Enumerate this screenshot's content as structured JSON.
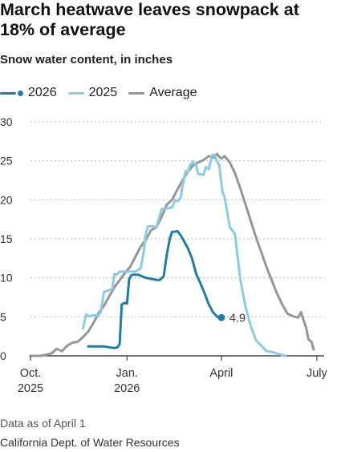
{
  "title": "March heatwave leaves snowpack at 18% of average",
  "subtitle": "Snow water content, in inches",
  "note": "Data as of April 1",
  "source": "California Dept. of Water Resources",
  "colors": {
    "s2026": "#1d7fa5",
    "s2025": "#8ccbe6",
    "average": "#969696",
    "grid": "#b9b9b9",
    "axis": "#222222"
  },
  "chart_data": {
    "type": "line",
    "title": "March heatwave leaves snowpack at 18% of average",
    "ylabel": "Snow water content, in inches",
    "ylim": [
      0,
      30
    ],
    "xlim": [
      0,
      280
    ],
    "yticks": [
      0,
      5,
      10,
      15,
      20,
      25,
      30
    ],
    "xticks": [
      {
        "x": 0,
        "label": "Oct.",
        "sublabel": "2025"
      },
      {
        "x": 92,
        "label": "Jan.",
        "sublabel": "2026"
      },
      {
        "x": 182,
        "label": "April",
        "sublabel": ""
      },
      {
        "x": 273,
        "label": "July",
        "sublabel": ""
      }
    ],
    "grid": true,
    "legend_position": "top-left",
    "end_label": "4.9",
    "series": [
      {
        "name": "Average",
        "x": [
          0,
          10,
          20,
          25,
          30,
          35,
          40,
          45,
          50,
          55,
          60,
          65,
          70,
          75,
          80,
          85,
          90,
          95,
          100,
          105,
          110,
          115,
          120,
          125,
          130,
          135,
          140,
          145,
          150,
          155,
          160,
          165,
          170,
          175,
          178,
          180,
          182,
          185,
          190,
          195,
          200,
          205,
          210,
          215,
          220,
          225,
          230,
          235,
          240,
          245,
          250,
          255,
          258,
          260,
          263,
          265,
          268,
          270
        ],
        "y": [
          0,
          0,
          0.3,
          0.9,
          0.6,
          1.3,
          1.7,
          1.8,
          2.4,
          3.1,
          4.2,
          5.5,
          6.4,
          7.6,
          8.8,
          9.7,
          10.6,
          11.4,
          12.7,
          14.0,
          14.9,
          16.1,
          16.5,
          17.8,
          19.4,
          20.0,
          21.3,
          22.5,
          23.6,
          24.4,
          24.8,
          25.1,
          25.6,
          25.4,
          25.9,
          25.5,
          25.3,
          25.6,
          24.8,
          23.4,
          21.5,
          19.4,
          17.3,
          15.2,
          13.3,
          11.4,
          9.7,
          8.0,
          6.6,
          5.4,
          5.1,
          4.9,
          5.6,
          4.7,
          3.5,
          2.1,
          1.8,
          0.8
        ]
      },
      {
        "name": "2025",
        "x": [
          50,
          53,
          56,
          60,
          65,
          67,
          70,
          75,
          78,
          80,
          82,
          85,
          88,
          90,
          95,
          100,
          105,
          108,
          110,
          112,
          115,
          120,
          125,
          130,
          135,
          138,
          140,
          143,
          145,
          148,
          150,
          152,
          155,
          158,
          160,
          165,
          167,
          170,
          173,
          175,
          178,
          180,
          183,
          185,
          190,
          195,
          200,
          205,
          210,
          215,
          220,
          225,
          230,
          235,
          240,
          243
        ],
        "y": [
          3.5,
          5.3,
          5.1,
          5.2,
          5.2,
          5.6,
          8.2,
          8.4,
          8.6,
          10.5,
          10.4,
          10.8,
          10.8,
          10.8,
          10.8,
          10.8,
          11.2,
          13.4,
          15.7,
          16.6,
          16.6,
          16.5,
          18.8,
          18.9,
          19.0,
          20.0,
          19.8,
          20.2,
          21.8,
          23.7,
          23.5,
          24.4,
          24.9,
          24.4,
          23.3,
          23.2,
          24.2,
          23.9,
          25.7,
          25.8,
          24.9,
          24.4,
          21.0,
          20.4,
          16.5,
          15.6,
          9.8,
          6.3,
          3.8,
          2.0,
          1.3,
          0.6,
          0.5,
          0.3,
          0.1,
          0.0
        ]
      },
      {
        "name": "2026",
        "x": [
          55,
          60,
          65,
          70,
          75,
          80,
          83,
          85,
          87,
          90,
          92,
          94,
          96,
          98,
          100,
          103,
          106,
          110,
          114,
          118,
          122,
          124,
          127,
          130,
          133,
          135,
          137,
          140,
          143,
          146,
          150,
          154,
          158,
          162,
          166,
          170,
          174,
          178,
          182
        ],
        "y": [
          1.2,
          1.2,
          1.2,
          1.2,
          1.1,
          1.0,
          1.1,
          1.5,
          6.6,
          6.8,
          6.7,
          9.8,
          10.3,
          10.4,
          10.4,
          10.4,
          10.2,
          10.0,
          9.9,
          9.8,
          9.7,
          9.8,
          10.2,
          13.0,
          15.1,
          15.9,
          15.9,
          16.0,
          15.5,
          14.8,
          13.8,
          12.5,
          10.5,
          9.3,
          8.0,
          6.6,
          5.6,
          5.0,
          4.9
        ]
      }
    ]
  }
}
